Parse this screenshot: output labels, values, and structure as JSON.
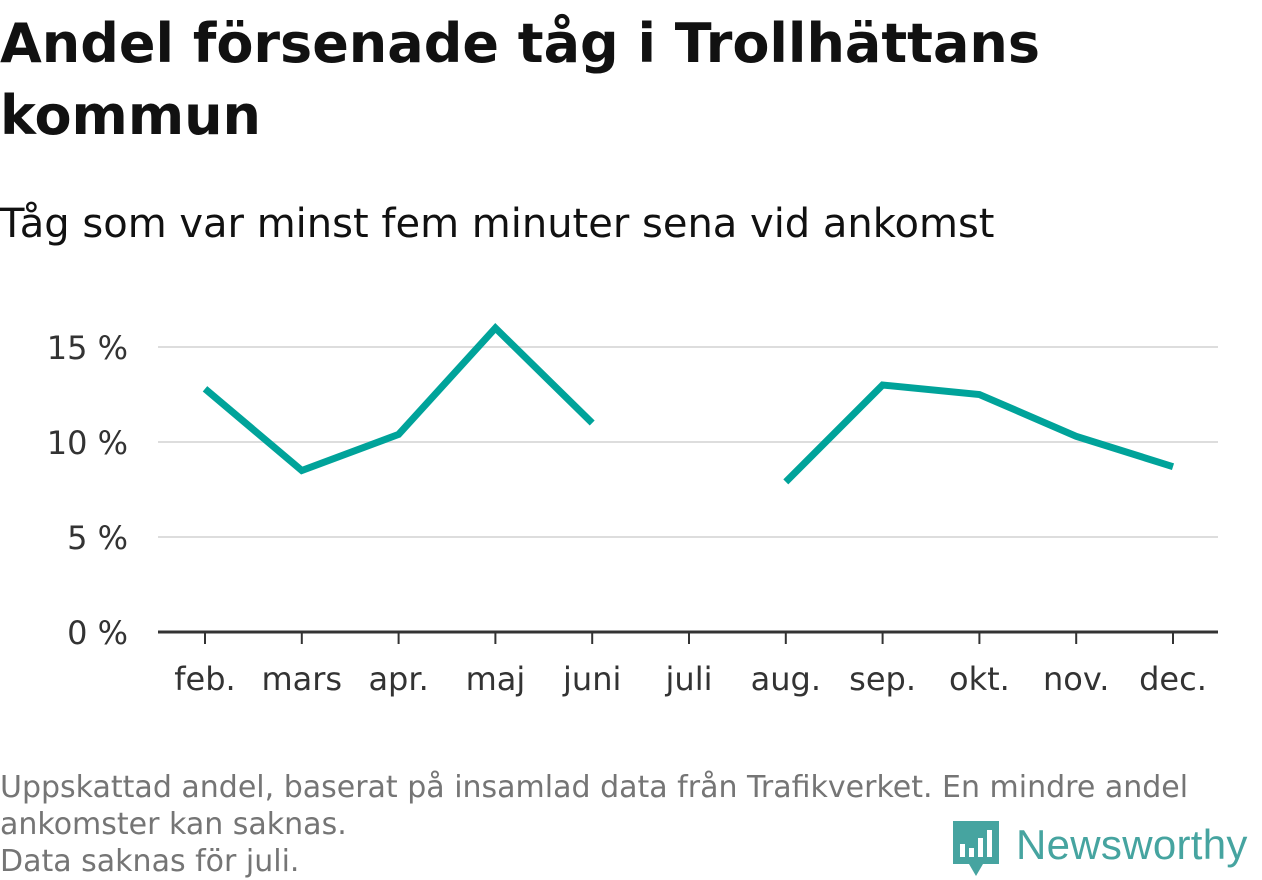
{
  "header": {
    "title": "Andel försenade tåg i Trollhättans kommun",
    "subtitle": "Tåg som var minst fem minuter sena vid ankomst"
  },
  "chart_data": {
    "type": "line",
    "title": "Andel försenade tåg i Trollhättans kommun",
    "subtitle": "Tåg som var minst fem minuter sena vid ankomst",
    "xlabel": "",
    "ylabel": "",
    "categories": [
      "feb.",
      "mars",
      "apr.",
      "maj",
      "juni",
      "juli",
      "aug.",
      "sep.",
      "okt.",
      "nov.",
      "dec."
    ],
    "series": [
      {
        "values": [
          12.8,
          8.5,
          10.4,
          16.0,
          11.0,
          null,
          7.9,
          13.0,
          12.5,
          10.3,
          8.7
        ]
      }
    ],
    "yticks": [
      0,
      5,
      10,
      15
    ],
    "ytick_labels": [
      "0 %",
      "5 %",
      "10 %",
      "15 %"
    ],
    "ylim": [
      0,
      16.5
    ],
    "grid": true,
    "legend": "none",
    "line_color": "#00a39a",
    "grid_color": "#dddddd",
    "axis_color": "#333333"
  },
  "footer": {
    "note_line1": "Uppskattad andel, baserat på insamlad data från Trafikverket. En mindre andel",
    "note_line2": "ankomster kan saknas.",
    "note_line3": "Data saknas för juli.",
    "brand": "Newsworthy",
    "brand_color": "#46a4a0",
    "logo_icon": "bar-chart-speech-bubble-icon"
  }
}
